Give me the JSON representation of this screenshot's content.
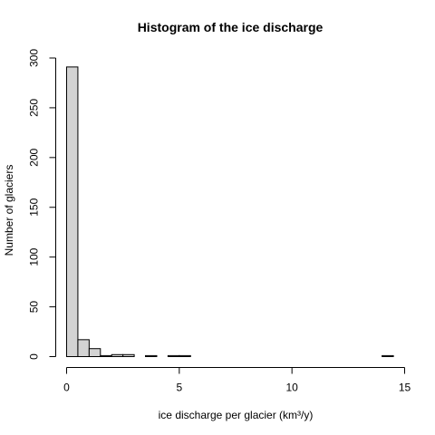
{
  "chart_data": {
    "type": "bar",
    "title": "Histogram of the ice discharge",
    "xlabel": "ice discharge per glacier (km³/y)",
    "ylabel": "Number of glaciers",
    "xlim": [
      0,
      15
    ],
    "ylim": [
      0,
      300
    ],
    "x_ticks": [
      "0",
      "5",
      "10",
      "15"
    ],
    "y_ticks": [
      "0",
      "50",
      "100",
      "150",
      "200",
      "250",
      "300"
    ],
    "bin_width": 0.5,
    "bin_starts": [
      0,
      0.5,
      1,
      1.5,
      2,
      2.5,
      3,
      3.5,
      4,
      4.5,
      5,
      5.5,
      6,
      6.5,
      7,
      7.5,
      8,
      8.5,
      9,
      9.5,
      10,
      10.5,
      11,
      11.5,
      12,
      12.5,
      13,
      13.5,
      14
    ],
    "values": [
      291,
      17,
      8,
      1,
      2,
      2,
      0,
      1,
      0,
      1,
      1,
      0,
      0,
      0,
      0,
      0,
      0,
      0,
      0,
      0,
      0,
      0,
      0,
      0,
      0,
      0,
      0,
      0,
      1
    ],
    "bar_fill": "#d3d3d3",
    "bar_stroke": "#000000",
    "grid": false
  }
}
